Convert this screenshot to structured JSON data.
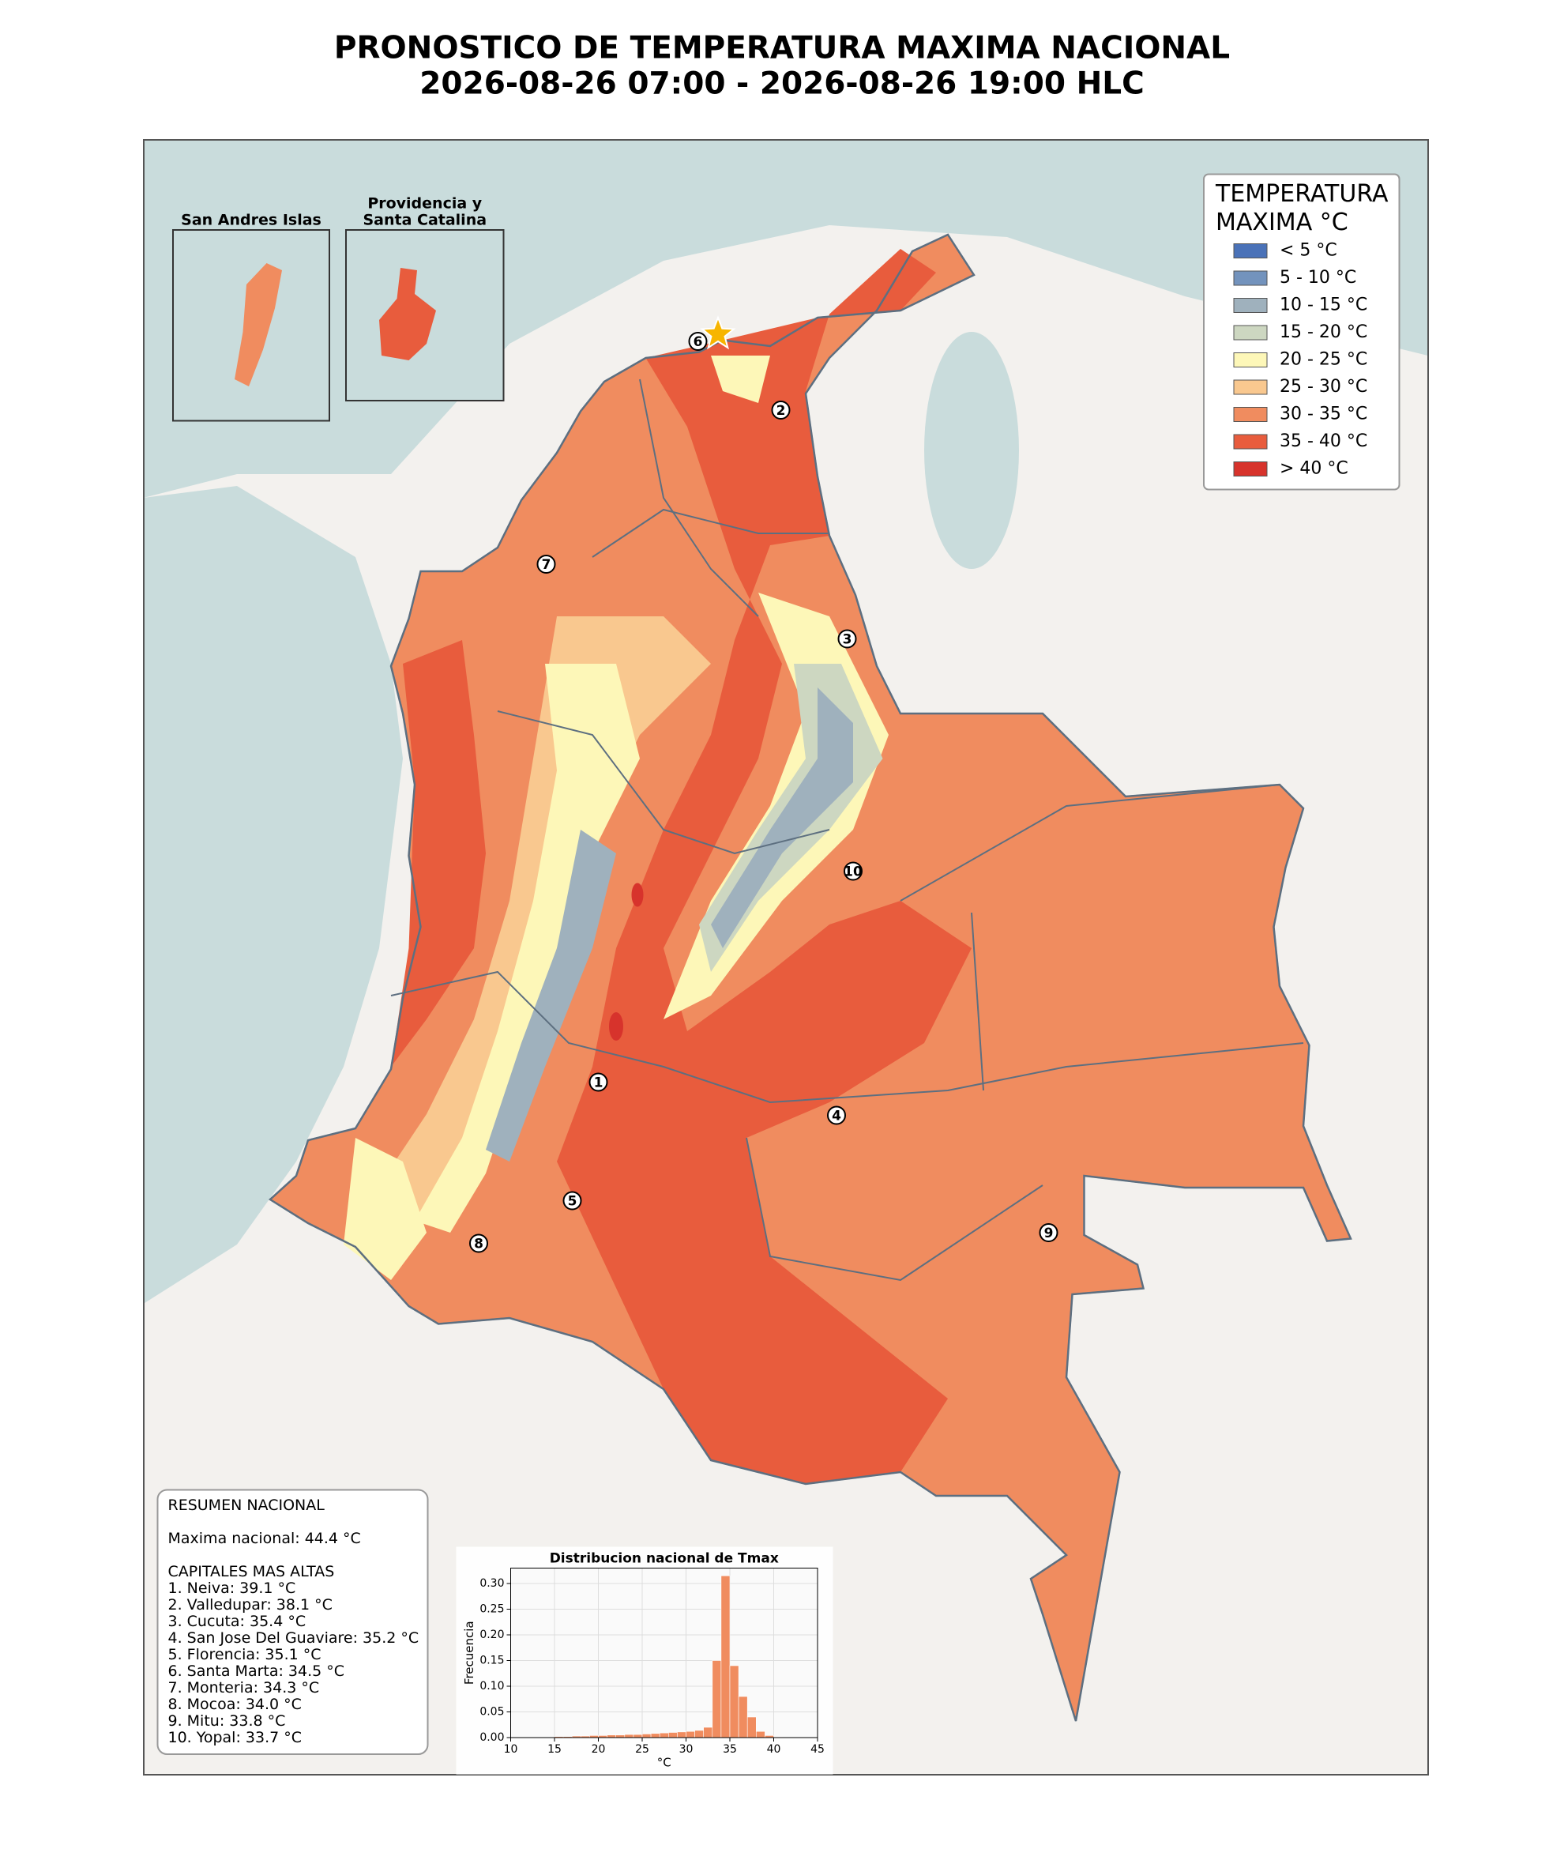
{
  "title": [
    "PRONOSTICO DE TEMPERATURA MAXIMA NACIONAL",
    "2026-08-26 07:00 - 2026-08-26 19:00 HLC"
  ],
  "insets": [
    {
      "title": [
        "San Andres Islas"
      ]
    },
    {
      "title": [
        "Providencia y",
        "Santa Catalina"
      ]
    }
  ],
  "legend": {
    "title": [
      "TEMPERATURA",
      "MAXIMA °C"
    ],
    "items": [
      {
        "label": "< 5 °C",
        "color": "#4a72b8"
      },
      {
        "label": "5 - 10 °C",
        "color": "#7393bd"
      },
      {
        "label": "10 - 15 °C",
        "color": "#9fb1bd"
      },
      {
        "label": "15 - 20 °C",
        "color": "#cdd7c1"
      },
      {
        "label": "20 - 25 °C",
        "color": "#fdf7b8"
      },
      {
        "label": "25 - 30 °C",
        "color": "#f9c88f"
      },
      {
        "label": "30 - 35 °C",
        "color": "#f08c5f"
      },
      {
        "label": "35 - 40 °C",
        "color": "#e85c3d"
      },
      {
        "label": "> 40 °C",
        "color": "#d7332c"
      }
    ]
  },
  "markers": [
    "1",
    "2",
    "3",
    "4",
    "5",
    "6",
    "7",
    "8",
    "9",
    "10"
  ],
  "summary": {
    "title": "RESUMEN NACIONAL",
    "national_max": "Maxima nacional: 44.4 °C",
    "capitals_title": "CAPITALES MAS ALTAS",
    "capitals": [
      "1. Neiva: 39.1 °C",
      "2. Valledupar: 38.1 °C",
      "3. Cucuta: 35.4 °C",
      "4. San Jose Del Guaviare: 35.2 °C",
      "5. Florencia: 35.1 °C",
      "6. Santa Marta: 34.5 °C",
      "7. Monteria: 34.3 °C",
      "8. Mocoa: 34.0 °C",
      "9. Mitu: 33.8 °C",
      "10. Yopal: 33.7 °C"
    ]
  },
  "chart_data": {
    "type": "histogram",
    "title": "Distribucion nacional de Tmax",
    "xlabel": "°C",
    "ylabel": "Frecuencia",
    "bins": [
      15,
      16,
      17,
      18,
      19,
      20,
      21,
      22,
      23,
      24,
      25,
      26,
      27,
      28,
      29,
      30,
      31,
      32,
      33,
      34,
      35,
      36,
      37,
      38,
      39,
      40,
      41
    ],
    "values": [
      0.002,
      0.002,
      0.003,
      0.003,
      0.004,
      0.004,
      0.005,
      0.005,
      0.006,
      0.006,
      0.007,
      0.008,
      0.009,
      0.01,
      0.011,
      0.012,
      0.014,
      0.02,
      0.15,
      0.315,
      0.14,
      0.08,
      0.04,
      0.012,
      0.004,
      0.001
    ],
    "color": "#f08c5f",
    "grid": true,
    "xlim": [
      10,
      45
    ],
    "xticks": [
      10,
      15,
      20,
      25,
      30,
      35,
      40,
      45
    ],
    "ylim": [
      0,
      0.33
    ],
    "yticks": [
      {
        "value": 0,
        "label": "0.00"
      },
      0.05,
      {
        "value": 0.1,
        "label": "0.10"
      },
      0.15,
      {
        "value": 0.2,
        "label": "0.20"
      },
      0.25,
      {
        "value": 0.3,
        "label": "0.30"
      }
    ]
  }
}
